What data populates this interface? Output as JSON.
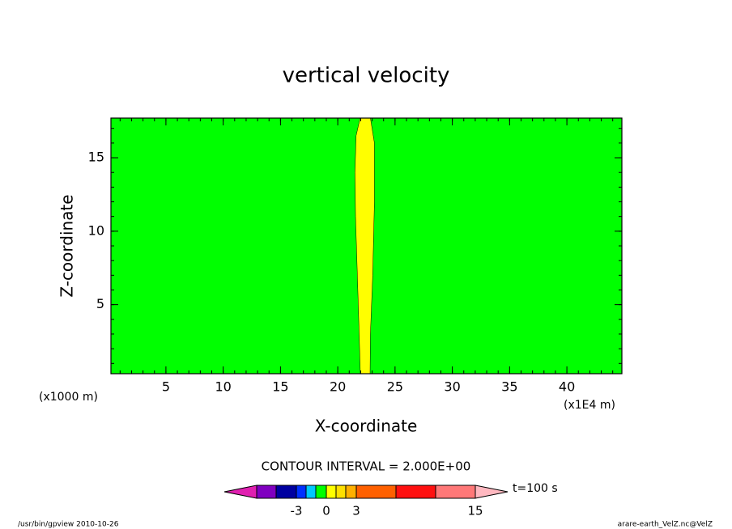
{
  "chart_data": {
    "type": "contour",
    "title": "vertical velocity",
    "xlabel": "X-coordinate",
    "ylabel": "Z-coordinate",
    "xunit": "(x1000 m)",
    "xscale_note": "(x1E4 m)",
    "background_color": "#00ff00",
    "regions": [
      {
        "color": "#ffff00",
        "x": [
          21.97,
          21.75,
          21.55,
          21.5,
          21.6,
          21.95,
          22.85,
          23.2,
          23.2,
          23.05,
          22.85,
          22.82
        ],
        "z": [
          0.3,
          6,
          11,
          14,
          16.5,
          17.7,
          17.7,
          16,
          12,
          7,
          3,
          0.3
        ]
      }
    ],
    "xlim": [
      0.2,
      44.8
    ],
    "ylim": [
      0.3,
      17.7
    ],
    "xticks": [
      5,
      10,
      15,
      20,
      25,
      30,
      35,
      40
    ],
    "yticks": [
      5,
      10,
      15
    ],
    "contour_interval": "CONTOUR INTERVAL = 2.000E+00",
    "colorbar": {
      "colors": [
        "#e020b0",
        "#8000c0",
        "#0000a0",
        "#0030ff",
        "#00c8ff",
        "#00ff00",
        "#ffff00",
        "#ffe000",
        "#ffb000",
        "#ff6000",
        "#ff1010",
        "#ff7878",
        "#ffb8c0"
      ],
      "levels": [
        null,
        null,
        -3,
        null,
        null,
        0,
        null,
        null,
        3,
        null,
        null,
        15
      ]
    },
    "time_label": "t=100 s",
    "footer_left": "/usr/bin/gpview  2010-10-26",
    "footer_right": "arare-earth_VelZ.nc@VelZ"
  }
}
